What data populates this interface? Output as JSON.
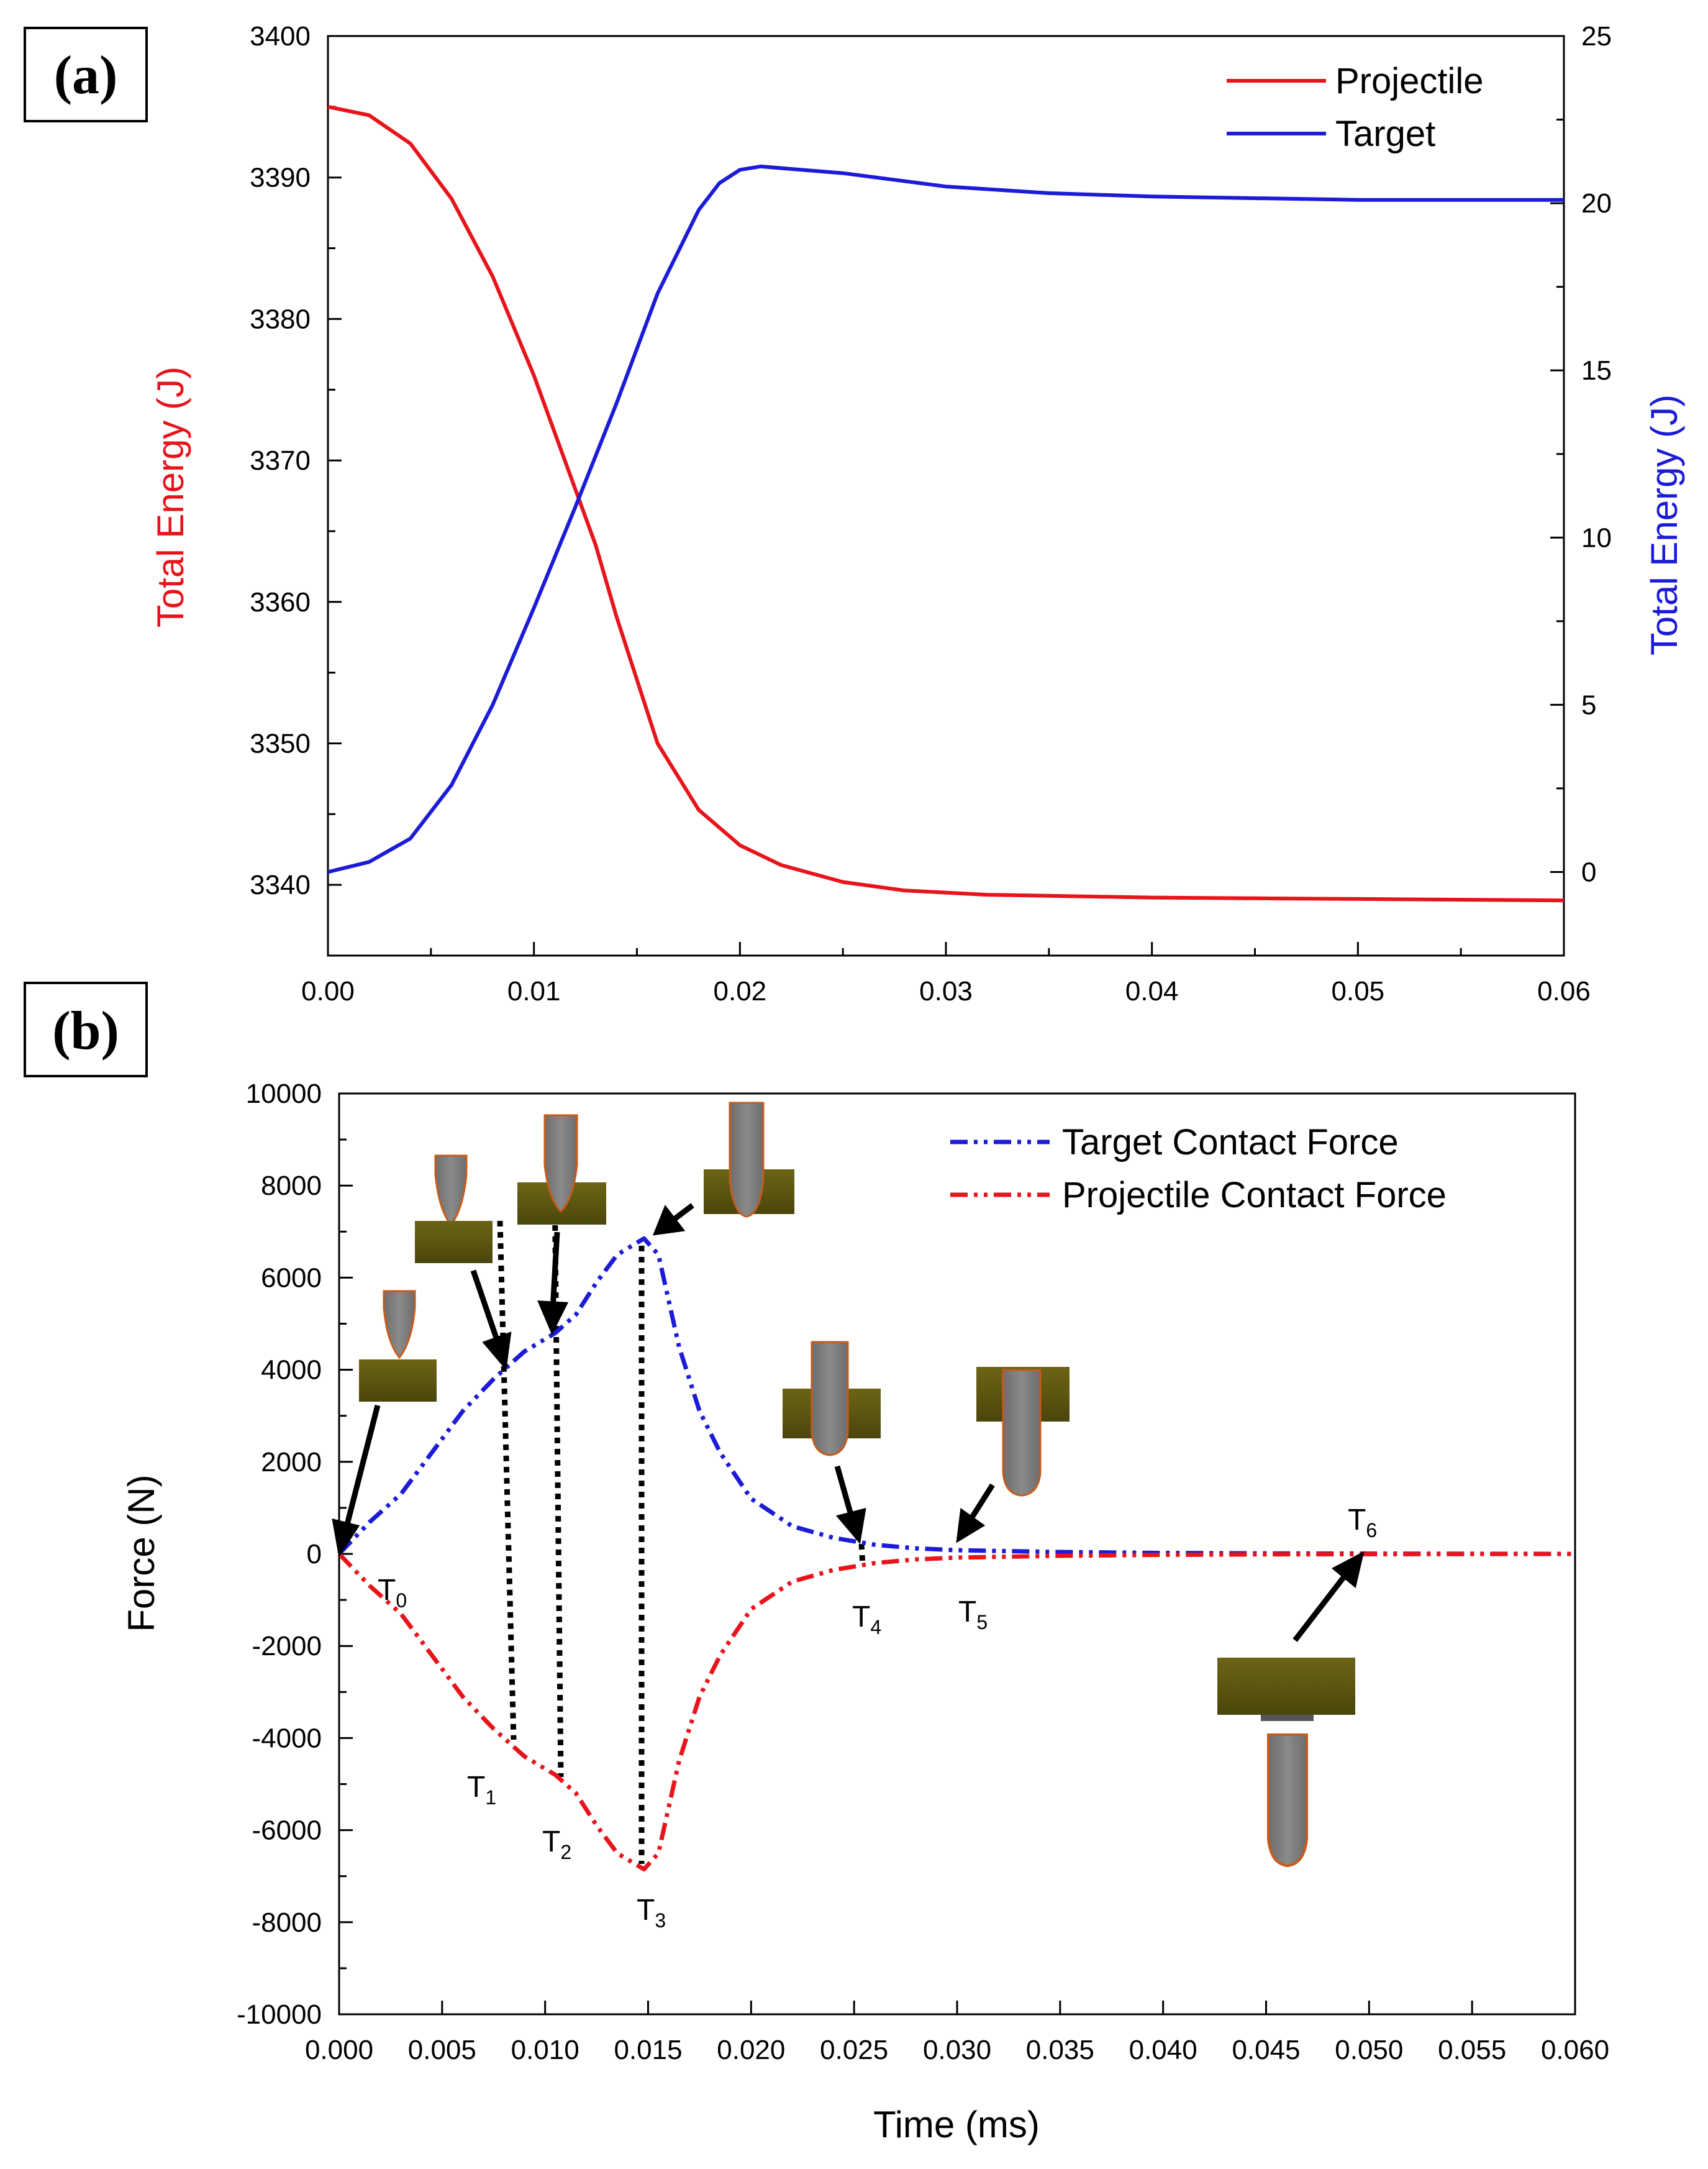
{
  "chart_data": [
    {
      "type": "line",
      "panel": "(a)",
      "xlabel": "",
      "xlim": [
        0,
        0.06
      ],
      "x_ticks": [
        "0.00",
        "0.01",
        "0.02",
        "0.03",
        "0.04",
        "0.05",
        "0.06"
      ],
      "ylabel_left": "Total Energy (J)",
      "ylim_left": [
        3335,
        3400
      ],
      "y_ticks_left": [
        "3340",
        "3350",
        "3360",
        "3370",
        "3380",
        "3390",
        "3400"
      ],
      "ylabel_right": "Total Energy (J)",
      "ylim_right": [
        -2.5,
        25
      ],
      "y_ticks_right": [
        "0",
        "5",
        "10",
        "15",
        "20",
        "25"
      ],
      "legend_position": "top-right",
      "series": [
        {
          "name": "Projectile",
          "color": "#e8141b",
          "axis": "left",
          "x": [
            0,
            0.002,
            0.004,
            0.006,
            0.008,
            0.01,
            0.012,
            0.013,
            0.014,
            0.016,
            0.018,
            0.02,
            0.022,
            0.025,
            0.028,
            0.032,
            0.04,
            0.05,
            0.06
          ],
          "y": [
            3395,
            3394.4,
            3392.4,
            3388.5,
            3383,
            3376,
            3368,
            3364,
            3359,
            3350,
            3345.3,
            3342.8,
            3341.4,
            3340.2,
            3339.6,
            3339.3,
            3339.1,
            3339.0,
            3338.9
          ]
        },
        {
          "name": "Target",
          "color": "#1b1bd8",
          "axis": "right",
          "x": [
            0,
            0.002,
            0.004,
            0.006,
            0.008,
            0.01,
            0.012,
            0.014,
            0.016,
            0.018,
            0.019,
            0.02,
            0.021,
            0.025,
            0.03,
            0.035,
            0.04,
            0.05,
            0.06
          ],
          "y": [
            0,
            0.3,
            1.0,
            2.6,
            5.0,
            7.9,
            10.9,
            14.0,
            17.3,
            19.8,
            20.6,
            21.0,
            21.1,
            20.9,
            20.5,
            20.3,
            20.2,
            20.1,
            20.1
          ]
        }
      ]
    },
    {
      "type": "line",
      "panel": "(b)",
      "xlabel": "Time (ms)",
      "ylabel": "Force (N)",
      "xlim": [
        0,
        0.06
      ],
      "x_ticks": [
        "0.000",
        "0.005",
        "0.010",
        "0.015",
        "0.020",
        "0.025",
        "0.030",
        "0.035",
        "0.040",
        "0.045",
        "0.050",
        "0.055",
        "0.060"
      ],
      "ylim": [
        -10000,
        10000
      ],
      "y_ticks": [
        "10000",
        "8000",
        "6000",
        "4000",
        "2000",
        "0",
        "-2000",
        "-4000",
        "-6000",
        "-8000",
        "-10000"
      ],
      "legend_position": "top-right",
      "series": [
        {
          "name": "Target Contact Force",
          "color": "#1b1bd8",
          "line_style": "dash-dot-dot",
          "x": [
            0,
            0.0015,
            0.003,
            0.0045,
            0.006,
            0.0075,
            0.009,
            0.0105,
            0.0115,
            0.0125,
            0.0135,
            0.0148,
            0.0155,
            0.0165,
            0.0175,
            0.0185,
            0.02,
            0.022,
            0.024,
            0.026,
            0.028,
            0.03,
            0.035,
            0.04,
            0.045,
            0.05,
            0.06
          ],
          "y": [
            0,
            700,
            1300,
            2200,
            3100,
            3800,
            4400,
            4800,
            5200,
            5900,
            6500,
            6850,
            6500,
            4500,
            3100,
            2200,
            1200,
            600,
            350,
            200,
            120,
            80,
            40,
            20,
            10,
            5,
            0
          ]
        },
        {
          "name": "Projectile Contact Force",
          "color": "#e8141b",
          "line_style": "dash-dot-dot",
          "x": [
            0,
            0.0015,
            0.003,
            0.0045,
            0.006,
            0.0075,
            0.009,
            0.0105,
            0.0115,
            0.0125,
            0.0135,
            0.0148,
            0.0155,
            0.0165,
            0.0175,
            0.0185,
            0.02,
            0.022,
            0.024,
            0.026,
            0.028,
            0.03,
            0.035,
            0.04,
            0.045,
            0.05,
            0.06
          ],
          "y": [
            0,
            -700,
            -1300,
            -2200,
            -3100,
            -3800,
            -4400,
            -4800,
            -5200,
            -5900,
            -6500,
            -6850,
            -6500,
            -4500,
            -3100,
            -2200,
            -1200,
            -600,
            -350,
            -200,
            -120,
            -80,
            -40,
            -20,
            -10,
            -5,
            0
          ]
        }
      ],
      "annotations": [
        {
          "sym": "T",
          "sub": "0",
          "x": 0.0
        },
        {
          "sym": "T",
          "sub": "1",
          "x": 0.0083
        },
        {
          "sym": "T",
          "sub": "2",
          "x": 0.0107
        },
        {
          "sym": "T",
          "sub": "3",
          "x": 0.0148
        },
        {
          "sym": "T",
          "sub": "4",
          "x": 0.0255
        },
        {
          "sym": "T",
          "sub": "5",
          "x": 0.03
        },
        {
          "sym": "T",
          "sub": "6",
          "x": 0.05
        }
      ]
    }
  ]
}
